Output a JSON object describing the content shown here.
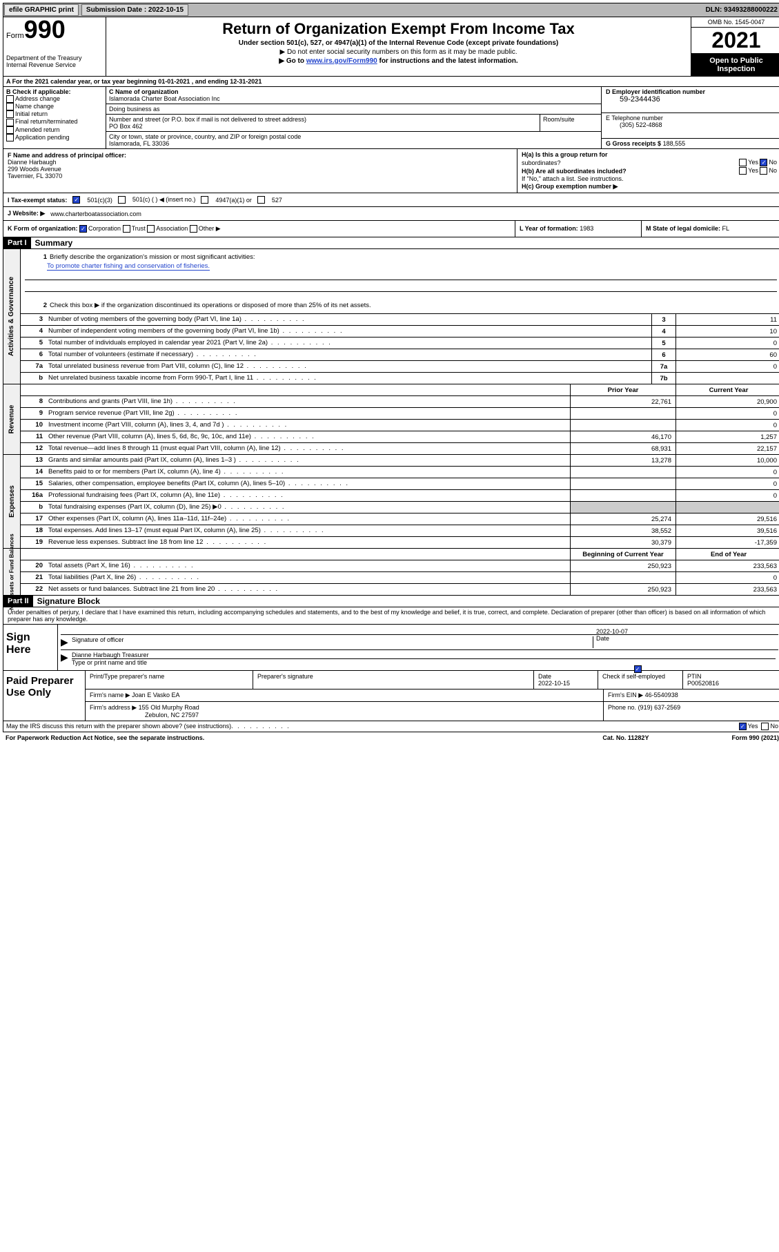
{
  "topbar": {
    "efile": "efile GRAPHIC print",
    "submission_label": "Submission Date : 2022-10-15",
    "dln_label": "DLN: 93493288000222"
  },
  "header": {
    "form_word": "Form",
    "form_num": "990",
    "title": "Return of Organization Exempt From Income Tax",
    "sub1": "Under section 501(c), 527, or 4947(a)(1) of the Internal Revenue Code (except private foundations)",
    "sub2": "▶ Do not enter social security numbers on this form as it may be made public.",
    "sub3_pre": "▶ Go to ",
    "sub3_link": "www.irs.gov/Form990",
    "sub3_post": " for instructions and the latest information.",
    "dept": "Department of the Treasury\nInternal Revenue Service",
    "omb": "OMB No. 1545-0047",
    "year": "2021",
    "inspection": "Open to Public Inspection"
  },
  "section_a": {
    "text": "A For the 2021 calendar year, or tax year beginning 01-01-2021    , and ending 12-31-2021"
  },
  "section_b": {
    "label": "B Check if applicable:",
    "items": [
      "Address change",
      "Name change",
      "Initial return",
      "Final return/terminated",
      "Amended return",
      "Application pending"
    ]
  },
  "section_c": {
    "name_label": "C Name of organization",
    "name": "Islamorada Charter Boat Association Inc",
    "dba_label": "Doing business as",
    "dba": "",
    "addr_label": "Number and street (or P.O. box if mail is not delivered to street address)",
    "addr": "PO Box 462",
    "room_label": "Room/suite",
    "city_label": "City or town, state or province, country, and ZIP or foreign postal code",
    "city": "Islamorada, FL  33036"
  },
  "section_d": {
    "ein_label": "D Employer identification number",
    "ein": "59-2344436",
    "phone_label": "E Telephone number",
    "phone": "(305) 522-4868",
    "gross_label": "G Gross receipts $",
    "gross": "188,555"
  },
  "section_f": {
    "label": "F Name and address of principal officer:",
    "name": "Dianne Harbaugh",
    "addr1": "299 Woods Avenue",
    "addr2": "Tavernier, FL  33070"
  },
  "section_h": {
    "ha_label": "H(a)  Is this a group return for",
    "ha_label2": "subordinates?",
    "hb_label": "H(b)  Are all subordinates included?",
    "hb_note": "If \"No,\" attach a list. See instructions.",
    "hc_label": "H(c)  Group exemption number ▶"
  },
  "section_i": {
    "label": "I    Tax-exempt status:",
    "opts": [
      "501(c)(3)",
      "501(c) (  ) ◀ (insert no.)",
      "4947(a)(1) or",
      "527"
    ]
  },
  "section_j": {
    "label": "J    Website: ▶",
    "value": "www.charterboatassociation.com"
  },
  "section_k": {
    "label": "K Form of organization:",
    "opts": [
      "Corporation",
      "Trust",
      "Association",
      "Other ▶"
    ],
    "l_label": "L Year of formation:",
    "l_value": "1983",
    "m_label": "M State of legal domicile:",
    "m_value": "FL"
  },
  "part1": {
    "header": "Part I",
    "title": "Summary",
    "line1_label": "Briefly describe the organization's mission or most significant activities:",
    "line1_value": "To promote charter fishing and conservation of fisheries.",
    "line2": "Check this box ▶      if the organization discontinued its operations or disposed of more than 25% of its net assets.",
    "governance_label": "Activities & Governance",
    "revenue_label": "Revenue",
    "expenses_label": "Expenses",
    "netassets_label": "Net Assets or Fund Balances",
    "prior_year": "Prior Year",
    "current_year": "Current Year",
    "beginning": "Beginning of Current Year",
    "endofyear": "End of Year",
    "rows_gov": [
      {
        "num": "3",
        "desc": "Number of voting members of the governing body (Part VI, line 1a)",
        "box": "3",
        "val": "11"
      },
      {
        "num": "4",
        "desc": "Number of independent voting members of the governing body (Part VI, line 1b)",
        "box": "4",
        "val": "10"
      },
      {
        "num": "5",
        "desc": "Total number of individuals employed in calendar year 2021 (Part V, line 2a)",
        "box": "5",
        "val": "0"
      },
      {
        "num": "6",
        "desc": "Total number of volunteers (estimate if necessary)",
        "box": "6",
        "val": "60"
      },
      {
        "num": "7a",
        "desc": "Total unrelated business revenue from Part VIII, column (C), line 12",
        "box": "7a",
        "val": "0"
      },
      {
        "num": "b",
        "desc": "Net unrelated business taxable income from Form 990-T, Part I, line 11",
        "box": "7b",
        "val": ""
      }
    ],
    "rows_rev": [
      {
        "num": "8",
        "desc": "Contributions and grants (Part VIII, line 1h)",
        "prior": "22,761",
        "curr": "20,900"
      },
      {
        "num": "9",
        "desc": "Program service revenue (Part VIII, line 2g)",
        "prior": "",
        "curr": "0"
      },
      {
        "num": "10",
        "desc": "Investment income (Part VIII, column (A), lines 3, 4, and 7d )",
        "prior": "",
        "curr": "0"
      },
      {
        "num": "11",
        "desc": "Other revenue (Part VIII, column (A), lines 5, 6d, 8c, 9c, 10c, and 11e)",
        "prior": "46,170",
        "curr": "1,257"
      },
      {
        "num": "12",
        "desc": "Total revenue—add lines 8 through 11 (must equal Part VIII, column (A), line 12)",
        "prior": "68,931",
        "curr": "22,157"
      }
    ],
    "rows_exp": [
      {
        "num": "13",
        "desc": "Grants and similar amounts paid (Part IX, column (A), lines 1–3 )",
        "prior": "13,278",
        "curr": "10,000"
      },
      {
        "num": "14",
        "desc": "Benefits paid to or for members (Part IX, column (A), line 4)",
        "prior": "",
        "curr": "0"
      },
      {
        "num": "15",
        "desc": "Salaries, other compensation, employee benefits (Part IX, column (A), lines 5–10)",
        "prior": "",
        "curr": "0"
      },
      {
        "num": "16a",
        "desc": "Professional fundraising fees (Part IX, column (A), line 11e)",
        "prior": "",
        "curr": "0"
      },
      {
        "num": "b",
        "desc": "Total fundraising expenses (Part IX, column (D), line 25) ▶0",
        "prior": "gray",
        "curr": "gray"
      },
      {
        "num": "17",
        "desc": "Other expenses (Part IX, column (A), lines 11a–11d, 11f–24e)",
        "prior": "25,274",
        "curr": "29,516"
      },
      {
        "num": "18",
        "desc": "Total expenses. Add lines 13–17 (must equal Part IX, column (A), line 25)",
        "prior": "38,552",
        "curr": "39,516"
      },
      {
        "num": "19",
        "desc": "Revenue less expenses. Subtract line 18 from line 12",
        "prior": "30,379",
        "curr": "-17,359"
      }
    ],
    "rows_net": [
      {
        "num": "20",
        "desc": "Total assets (Part X, line 16)",
        "prior": "250,923",
        "curr": "233,563"
      },
      {
        "num": "21",
        "desc": "Total liabilities (Part X, line 26)",
        "prior": "",
        "curr": "0"
      },
      {
        "num": "22",
        "desc": "Net assets or fund balances. Subtract line 21 from line 20",
        "prior": "250,923",
        "curr": "233,563"
      }
    ]
  },
  "part2": {
    "header": "Part II",
    "title": "Signature Block",
    "declaration": "Under penalties of perjury, I declare that I have examined this return, including accompanying schedules and statements, and to the best of my knowledge and belief, it is true, correct, and complete. Declaration of preparer (other than officer) is based on all information of which preparer has any knowledge.",
    "sign_here": "Sign Here",
    "sig_officer": "Signature of officer",
    "sig_date_val": "2022-10-07",
    "sig_date": "Date",
    "sig_name": "Dianne Harbaugh Treasurer",
    "sig_name_label": "Type or print name and title",
    "paid_label": "Paid Preparer Use Only",
    "prep_name_label": "Print/Type preparer's name",
    "prep_sig_label": "Preparer's signature",
    "prep_date_label": "Date",
    "prep_date": "2022-10-15",
    "prep_check_label": "Check         if self-employed",
    "ptin_label": "PTIN",
    "ptin": "P00520816",
    "firm_name_label": "Firm's name    ▶",
    "firm_name": "Joan E Vasko EA",
    "firm_ein_label": "Firm's EIN ▶",
    "firm_ein": "46-5540938",
    "firm_addr_label": "Firm's address ▶",
    "firm_addr1": "155 Old Murphy Road",
    "firm_addr2": "Zebulon, NC  27597",
    "firm_phone_label": "Phone no.",
    "firm_phone": "(919) 637-2569",
    "discuss": "May the IRS discuss this return with the preparer shown above? (see instructions)"
  },
  "footer": {
    "paperwork": "For Paperwork Reduction Act Notice, see the separate instructions.",
    "catno": "Cat. No. 11282Y",
    "formrev": "Form 990 (2021)"
  },
  "labels": {
    "yes": "Yes",
    "no": "No"
  }
}
